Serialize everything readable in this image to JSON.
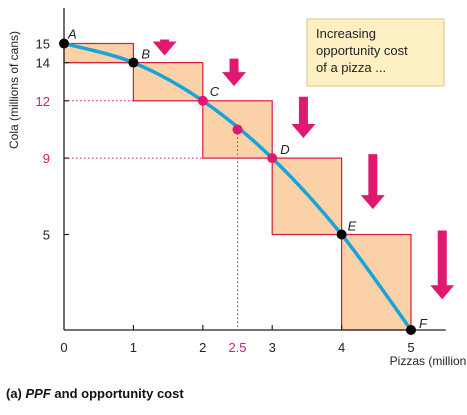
{
  "chart_data": {
    "type": "line",
    "xlabel": "Pizzas (millions)",
    "ylabel": "Cola (millions of cans)",
    "xlim": [
      0,
      5.5
    ],
    "ylim": [
      0,
      16
    ],
    "x_ticks": [
      "0",
      "1",
      "2",
      "2.5",
      "3",
      "4",
      "5"
    ],
    "y_ticks": [
      "15",
      "14",
      "12",
      "9",
      "5"
    ],
    "points": [
      {
        "label": "A",
        "x": 0,
        "y": 15
      },
      {
        "label": "B",
        "x": 1,
        "y": 14
      },
      {
        "label": "C",
        "x": 2,
        "y": 12
      },
      {
        "label": "D",
        "x": 3,
        "y": 9
      },
      {
        "label": "E",
        "x": 4,
        "y": 5
      },
      {
        "label": "F",
        "x": 5,
        "y": 0
      }
    ],
    "midpoint": {
      "x": 2.5,
      "y": 10.5
    },
    "annotation": [
      "Increasing",
      "opportunity cost",
      "of a pizza ..."
    ],
    "caption": {
      "prefix": "(a) ",
      "italic": "PPF",
      "suffix": " and opportunity cost"
    },
    "colors": {
      "curve": "#1aa3d9",
      "box_fill": "#fbd2a8",
      "box_stroke": "#d01f3a",
      "point": "#000000",
      "pink": "#e0186f",
      "annotation_bg": "#fdf1c4"
    }
  }
}
